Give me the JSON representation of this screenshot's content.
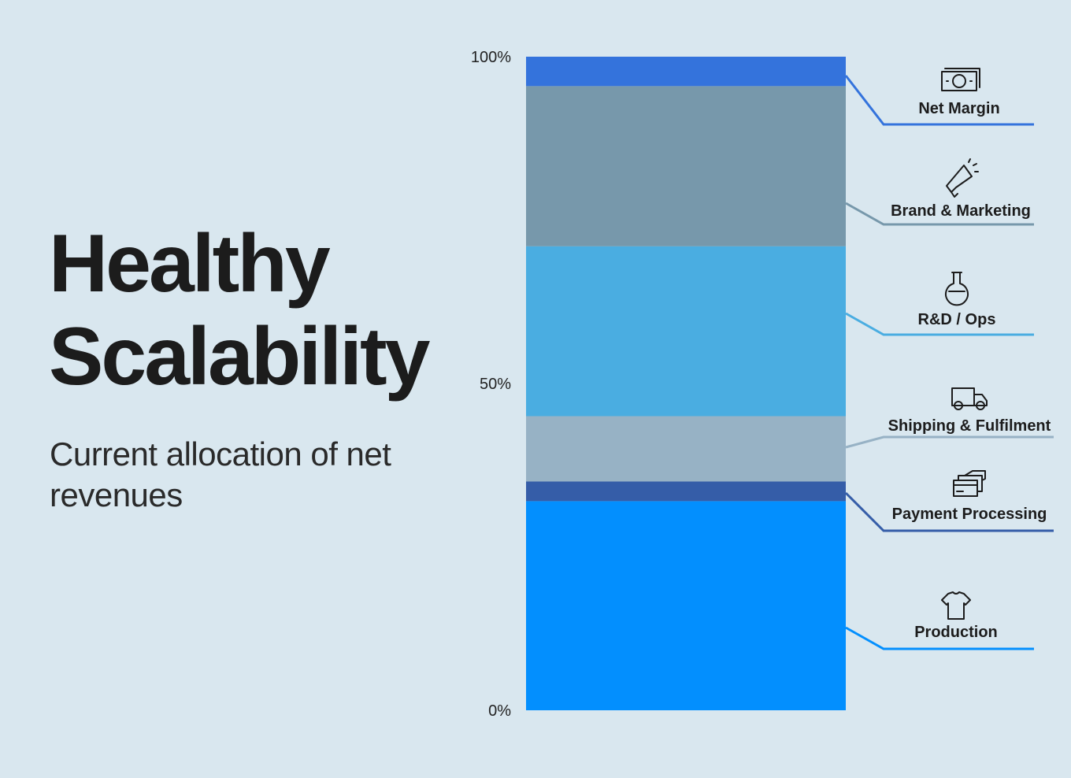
{
  "heading": {
    "line1": "Healthy",
    "line2": "Scalability"
  },
  "subtitle": "Current allocation of net revenues",
  "chart_data": {
    "type": "bar",
    "stacked": true,
    "percent_stacked": true,
    "ylim": [
      0,
      100
    ],
    "y_ticks": [
      "0%",
      "50%",
      "100%"
    ],
    "y_tick_values": [
      0,
      50,
      100
    ],
    "series": [
      {
        "name": "Production",
        "values": [
          32
        ],
        "color": "#038ffe",
        "icon": "tshirt-icon"
      },
      {
        "name": "Payment Processing",
        "values": [
          3
        ],
        "color": "#355da8",
        "icon": "credit-card-icon"
      },
      {
        "name": "Shipping & Fulfilment",
        "values": [
          10
        ],
        "color": "#97b2c5",
        "icon": "truck-icon"
      },
      {
        "name": "R&D / Ops",
        "values": [
          26
        ],
        "color": "#4aade1",
        "icon": "flask-icon"
      },
      {
        "name": "Brand & Marketing",
        "values": [
          24.5
        ],
        "color": "#7798ab",
        "icon": "megaphone-icon"
      },
      {
        "name": "Net Margin",
        "values": [
          4.5
        ],
        "color": "#3473dc",
        "icon": "money-icon"
      }
    ]
  }
}
